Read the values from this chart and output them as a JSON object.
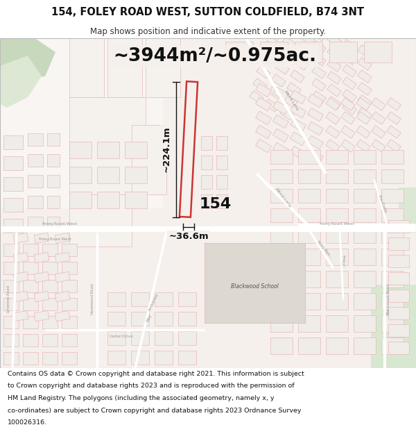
{
  "title_line1": "154, FOLEY ROAD WEST, SUTTON COLDFIELD, B74 3NT",
  "title_line2": "Map shows position and indicative extent of the property.",
  "area_text": "~3944m²/~0.975ac.",
  "label_154": "154",
  "dim_vertical": "~224.1m",
  "dim_horizontal": "~36.6m",
  "footer_lines": [
    "Contains OS data © Crown copyright and database right 2021. This information is subject",
    "to Crown copyright and database rights 2023 and is reproduced with the permission of",
    "HM Land Registry. The polygons (including the associated geometry, namely x, y",
    "co-ordinates) are subject to Crown copyright and database rights 2023 Ordnance Survey",
    "100026316."
  ],
  "map_bg": "#f5f0ec",
  "white_area": "#f8f6f4",
  "header_bg": "#ffffff",
  "footer_bg": "#ffffff",
  "red": "#cc3333",
  "light_red": "#e8b8b8",
  "pink_red": "#d9a0a0",
  "green_light": "#dce8d4",
  "green_dark": "#c8d8bc",
  "grey_road": "#d0c8c0",
  "dim_line": "#111111",
  "road_label": "#888888",
  "bldg_fill": "#f0ece8",
  "bldg_stroke": "#cc7777"
}
